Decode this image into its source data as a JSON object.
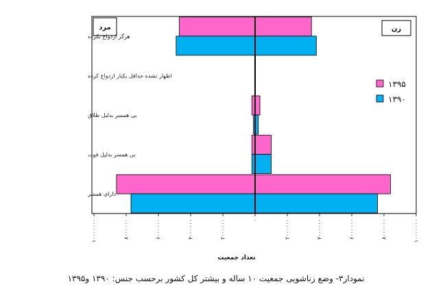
{
  "caption": "نمودار۳- وضع زناشویی جمعیت ۱۰ ساله و بیشتر کل کشور برحسب جنس: ۱۳۹۰ و۱۳۹۵",
  "colors": {
    "series_1395": "#ff66cc",
    "series_1390": "#00b0f0",
    "frame": "#000000"
  },
  "chart_data": {
    "type": "bar",
    "orientation": "horizontal-population-pyramid",
    "categories": [
      "هرگز ازدواج نکرده",
      "اظهار نشده حداقل یکبار ازدواج کرده",
      "بی همسر بدلیل طلاق",
      "بی همسر بدلیل فوت",
      "دارای همسر"
    ],
    "left_side_label": "مرد",
    "right_side_label": "زن",
    "xlabel": "تعداد جمعیت",
    "xlim": [
      -10000000,
      10000000
    ],
    "x_ticks": [
      -10000000,
      -8000000,
      -6000000,
      -4000000,
      -2000000,
      0,
      2000000,
      4000000,
      6000000,
      8000000,
      10000000
    ],
    "x_tick_labels": [
      "۱۰۰۰۰۰۰۰",
      "۸۰۰۰۰۰۰",
      "۶۰۰۰۰۰۰",
      "۴۰۰۰۰۰۰",
      "۲۰۰۰۰۰۰",
      "۰",
      "۲۰۰۰۰۰۰",
      "۴۰۰۰۰۰۰",
      "۶۰۰۰۰۰۰",
      "۸۰۰۰۰۰۰",
      "۱۰۰۰۰۰۰۰"
    ],
    "legend_position": "right",
    "series": [
      {
        "name": "۱۳۹۵",
        "male": [
          4700000,
          0,
          200000,
          200000,
          8600000
        ],
        "female": [
          3500000,
          0,
          300000,
          1000000,
          8400000
        ]
      },
      {
        "name": "۱۳۹۰",
        "male": [
          4900000,
          0,
          100000,
          200000,
          7700000
        ],
        "female": [
          3800000,
          0,
          200000,
          1000000,
          7600000
        ]
      }
    ]
  }
}
